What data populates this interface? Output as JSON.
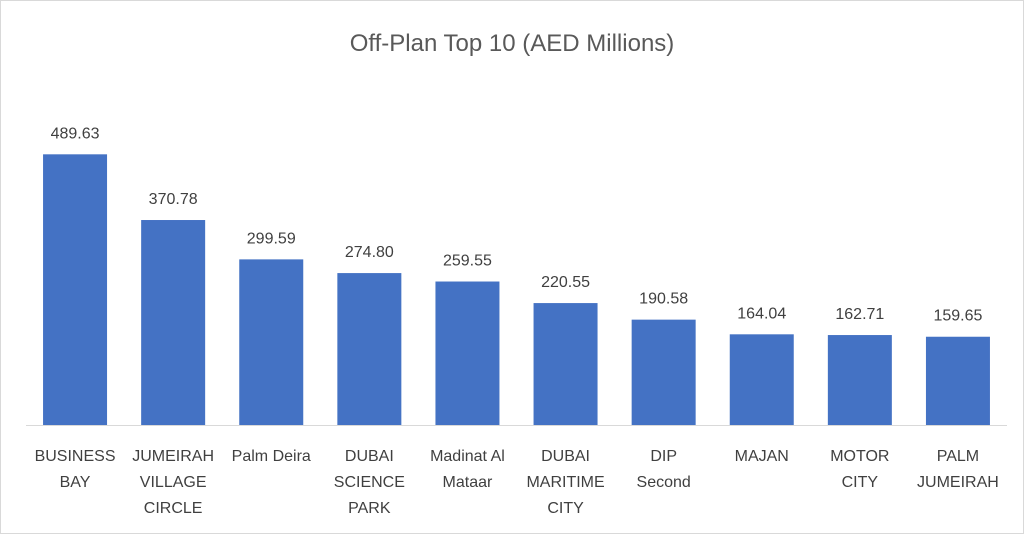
{
  "chart_data": {
    "type": "bar",
    "title": "Off-Plan Top 10 (AED Millions)",
    "xlabel": "",
    "ylabel": "",
    "ylim": [
      0,
      530
    ],
    "grid": false,
    "legend": "none",
    "categories": [
      "BUSINESS BAY",
      "JUMEIRAH VILLAGE CIRCLE",
      "Palm Deira",
      "DUBAI SCIENCE PARK",
      "Madinat Al Mataar",
      "DUBAI MARITIME CITY",
      "DIP Second",
      "MAJAN",
      "MOTOR CITY",
      "PALM JUMEIRAH"
    ],
    "category_label_lines": [
      [
        "BUSINESS",
        "BAY"
      ],
      [
        "JUMEIRAH",
        "VILLAGE",
        "CIRCLE"
      ],
      [
        "Palm Deira"
      ],
      [
        "DUBAI",
        "SCIENCE",
        "PARK"
      ],
      [
        "Madinat Al",
        "Mataar"
      ],
      [
        "DUBAI",
        "MARITIME",
        "CITY"
      ],
      [
        "DIP",
        "Second"
      ],
      [
        "MAJAN"
      ],
      [
        "MOTOR",
        "CITY"
      ],
      [
        "PALM",
        "JUMEIRAH"
      ]
    ],
    "values": [
      489.63,
      370.78,
      299.59,
      274.8,
      259.55,
      220.55,
      190.58,
      164.04,
      162.71,
      159.65
    ],
    "value_labels": [
      "489.63",
      "370.78",
      "299.59",
      "274.80",
      "259.55",
      "220.55",
      "190.58",
      "164.04",
      "162.71",
      "159.65"
    ],
    "colors": {
      "bar": "#4472C4",
      "axis": "#D9D9D9",
      "text": "#404040",
      "title": "#595959"
    }
  }
}
